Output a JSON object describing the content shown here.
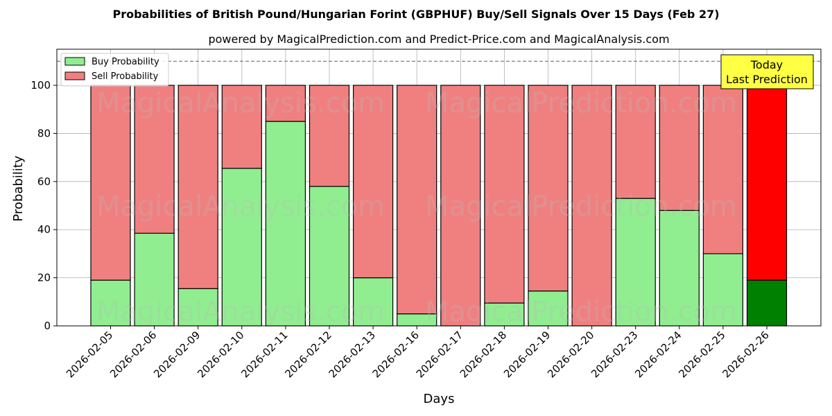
{
  "chart_data": {
    "type": "bar",
    "stacked": true,
    "title": "Probabilities of British Pound/Hungarian Forint (GBPHUF) Buy/Sell Signals Over 15 Days (Feb 27)",
    "subtitle": "powered by MagicalPrediction.com and Predict-Price.com and MagicalAnalysis.com",
    "xlabel": "Days",
    "ylabel": "Probability",
    "ylim": [
      0,
      115
    ],
    "yticks": [
      0,
      20,
      40,
      60,
      80,
      100
    ],
    "grid": true,
    "legend_position": "top-left",
    "reference_line": 110,
    "categories": [
      "2026-02-05",
      "2026-02-06",
      "2026-02-09",
      "2026-02-10",
      "2026-02-11",
      "2026-02-12",
      "2026-02-13",
      "2026-02-16",
      "2026-02-17",
      "2026-02-18",
      "2026-02-19",
      "2026-02-20",
      "2026-02-23",
      "2026-02-24",
      "2026-02-25",
      "2026-02-26"
    ],
    "series": [
      {
        "name": "Buy Probability",
        "color": "#90ee90",
        "today_color": "#008000",
        "values": [
          19,
          38.5,
          15.5,
          65.5,
          85,
          58,
          20,
          5,
          0,
          9.5,
          14.5,
          0,
          53,
          48,
          30,
          19
        ]
      },
      {
        "name": "Sell Probability",
        "color": "#f08080",
        "today_color": "#ff0000",
        "values": [
          81,
          61.5,
          84.5,
          34.5,
          15,
          42,
          80,
          95,
          100,
          90.5,
          85.5,
          100,
          47,
          52,
          70,
          81
        ]
      }
    ],
    "annotation": {
      "lines": [
        "Today",
        "Last Prediction"
      ],
      "color": "#ffff44"
    },
    "watermarks": [
      "MagicalAnalysis.com",
      "MagicalPrediction.com"
    ]
  }
}
